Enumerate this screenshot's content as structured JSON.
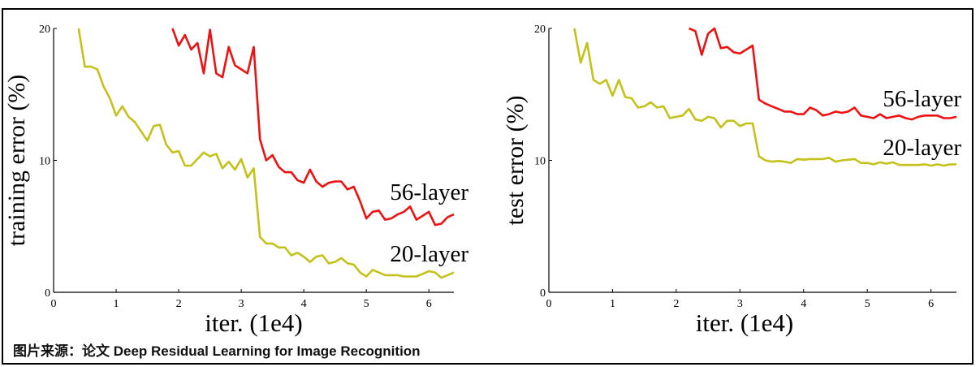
{
  "caption": "图片来源：论文 Deep Residual Learning for Image Recognition",
  "colors": {
    "layer56": "#ee1111",
    "layer20": "#c4c21a"
  },
  "chart_data": [
    {
      "type": "line",
      "title": "",
      "xlabel": "iter. (1e4)",
      "ylabel": "training error (%)",
      "xlim": [
        0,
        6.4
      ],
      "ylim": [
        0,
        20
      ],
      "xticks": [
        "0",
        "1",
        "2",
        "3",
        "4",
        "5",
        "6"
      ],
      "yticks": [
        "0",
        "10",
        "20"
      ],
      "grid": false,
      "series": [
        {
          "name": "56-layer",
          "x_start": 1.9,
          "x_step": 0.1,
          "values": [
            20,
            18.7,
            19.5,
            18.4,
            18.9,
            16.6,
            19.9,
            16.6,
            16.3,
            18.6,
            17.2,
            16.9,
            16.6,
            18.6,
            11.6,
            10.0,
            10.4,
            9.5,
            9.1,
            9.1,
            8.5,
            8.3,
            9.3,
            8.4,
            8.0,
            8.3,
            8.4,
            8.4,
            7.8,
            8.0,
            6.9,
            5.6,
            6.1,
            6.2,
            5.5,
            5.6,
            5.9,
            6.1,
            6.5,
            5.5,
            5.8,
            6.1,
            5.1,
            5.2,
            5.7,
            5.9
          ]
        },
        {
          "name": "20-layer",
          "x_start": 0.4,
          "x_step": 0.1,
          "values": [
            20,
            17.1,
            17.1,
            16.9,
            15.6,
            14.7,
            13.4,
            14.1,
            13.3,
            12.9,
            12.2,
            11.5,
            12.6,
            12.7,
            11.2,
            10.6,
            10.7,
            9.6,
            9.6,
            10.1,
            10.6,
            10.3,
            10.5,
            9.4,
            9.9,
            9.3,
            10.1,
            8.7,
            9.4,
            4.2,
            3.7,
            3.7,
            3.4,
            3.4,
            2.8,
            3.0,
            2.7,
            2.3,
            2.7,
            2.8,
            2.2,
            2.3,
            2.6,
            2.2,
            2.1,
            1.5,
            1.2,
            1.7,
            1.5,
            1.3,
            1.3,
            1.3,
            1.2,
            1.2,
            1.2,
            1.4,
            1.6,
            1.5,
            1.1,
            1.3,
            1.5
          ]
        }
      ]
    },
    {
      "type": "line",
      "title": "",
      "xlabel": "iter. (1e4)",
      "ylabel": "test error (%)",
      "xlim": [
        0,
        6.4
      ],
      "ylim": [
        0,
        20
      ],
      "xticks": [
        "0",
        "1",
        "2",
        "3",
        "4",
        "5",
        "6"
      ],
      "yticks": [
        "0",
        "10",
        "20"
      ],
      "grid": false,
      "series": [
        {
          "name": "56-layer",
          "x_start": 2.2,
          "x_step": 0.1,
          "values": [
            20.0,
            19.8,
            18.0,
            19.6,
            20.0,
            18.5,
            18.6,
            18.2,
            18.1,
            18.4,
            18.7,
            14.6,
            14.3,
            14.1,
            13.9,
            13.7,
            13.7,
            13.5,
            13.5,
            14.0,
            13.8,
            13.4,
            13.5,
            13.7,
            13.6,
            13.7,
            14.0,
            13.4,
            13.3,
            13.2,
            13.5,
            13.2,
            13.3,
            13.4,
            13.2,
            13.1,
            13.3,
            13.4,
            13.4,
            13.4,
            13.2,
            13.2,
            13.3
          ]
        },
        {
          "name": "20-layer",
          "x_start": 0.4,
          "x_step": 0.1,
          "values": [
            20,
            17.4,
            18.9,
            16.1,
            15.8,
            16.1,
            14.9,
            16.1,
            14.8,
            14.7,
            14.0,
            14.1,
            14.4,
            14.0,
            14.1,
            13.2,
            13.3,
            13.4,
            13.9,
            13.1,
            13.0,
            13.3,
            13.2,
            12.5,
            13.0,
            13.0,
            12.6,
            12.8,
            12.8,
            10.3,
            10.0,
            9.9,
            9.95,
            9.9,
            9.8,
            10.1,
            10.05,
            10.1,
            10.1,
            10.1,
            10.2,
            9.9,
            10.0,
            10.05,
            10.1,
            9.8,
            9.8,
            9.7,
            9.85,
            9.75,
            9.85,
            9.65,
            9.65,
            9.65,
            9.65,
            9.7,
            9.6,
            9.7,
            9.6,
            9.7,
            9.7
          ]
        }
      ]
    }
  ]
}
